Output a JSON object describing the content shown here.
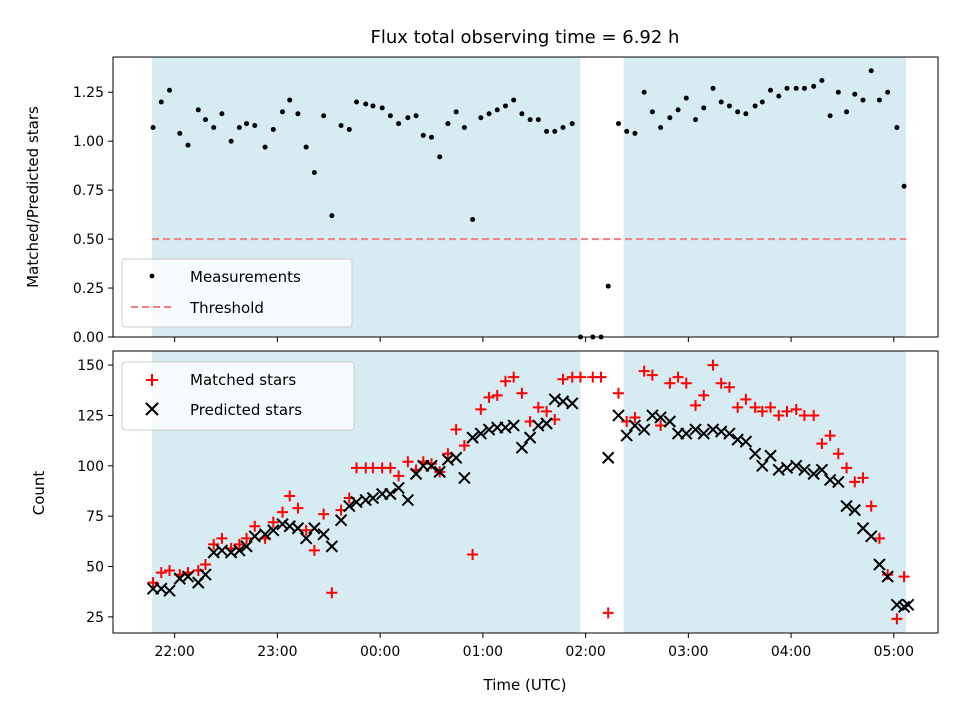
{
  "chart_data": [
    {
      "type": "scatter",
      "title": "Flux total observing time = 6.92 h",
      "ylabel": "Matched/Predicted stars",
      "xlabel": "",
      "ylim": [
        0,
        1.43
      ],
      "xlim": [
        21.4,
        29.43
      ],
      "x_ticks": [
        22,
        23,
        24,
        25,
        26,
        27,
        28,
        29
      ],
      "y_ticks": [
        0.0,
        0.25,
        0.5,
        0.75,
        1.0,
        1.25
      ],
      "y_tick_labels": [
        "0.00",
        "0.25",
        "0.50",
        "0.75",
        "1.00",
        "1.25"
      ],
      "threshold": 0.5,
      "shaded_regions": [
        [
          21.78,
          25.95
        ],
        [
          26.37,
          29.12
        ]
      ],
      "series": [
        {
          "name": "Measurements",
          "color": "#000000",
          "x": [
            21.79,
            21.87,
            21.95,
            22.05,
            22.13,
            22.23,
            22.3,
            22.38,
            22.46,
            22.55,
            22.63,
            22.7,
            22.78,
            22.88,
            22.96,
            23.05,
            23.12,
            23.2,
            23.28,
            23.36,
            23.45,
            23.53,
            23.62,
            23.7,
            23.77,
            23.86,
            23.93,
            24.02,
            24.1,
            24.18,
            24.27,
            24.35,
            24.42,
            24.5,
            24.58,
            24.66,
            24.74,
            24.82,
            24.9,
            24.98,
            25.06,
            25.14,
            25.22,
            25.3,
            25.38,
            25.46,
            25.54,
            25.62,
            25.7,
            25.78,
            25.87,
            25.95,
            26.07,
            26.15,
            26.22,
            26.32,
            26.4,
            26.48,
            26.57,
            26.65,
            26.73,
            26.82,
            26.9,
            26.98,
            27.07,
            27.15,
            27.24,
            27.32,
            27.4,
            27.48,
            27.56,
            27.65,
            27.72,
            27.8,
            27.88,
            27.96,
            28.05,
            28.13,
            28.22,
            28.3,
            28.38,
            28.46,
            28.54,
            28.62,
            28.7,
            28.78,
            28.86,
            28.94,
            29.03,
            29.1
          ],
          "y": [
            1.07,
            1.2,
            1.26,
            1.04,
            0.98,
            1.16,
            1.11,
            1.07,
            1.14,
            1.0,
            1.07,
            1.09,
            1.08,
            0.97,
            1.06,
            1.15,
            1.21,
            1.14,
            0.97,
            0.84,
            1.13,
            0.62,
            1.08,
            1.06,
            1.2,
            1.19,
            1.18,
            1.17,
            1.13,
            1.09,
            1.12,
            1.13,
            1.03,
            1.02,
            0.92,
            1.09,
            1.15,
            1.07,
            0.6,
            1.12,
            1.14,
            1.16,
            1.18,
            1.21,
            1.14,
            1.11,
            1.11,
            1.05,
            1.05,
            1.07,
            1.09,
            0.0,
            0.0,
            0.0,
            0.26,
            1.09,
            1.05,
            1.04,
            1.25,
            1.15,
            1.07,
            1.12,
            1.16,
            1.22,
            1.11,
            1.17,
            1.27,
            1.2,
            1.18,
            1.15,
            1.14,
            1.18,
            1.2,
            1.26,
            1.23,
            1.27,
            1.27,
            1.27,
            1.28,
            1.31,
            1.13,
            1.25,
            1.15,
            1.24,
            1.21,
            1.36,
            1.21,
            1.25,
            1.07,
            0.77
          ]
        },
        {
          "name": "Threshold",
          "color": "#f07f7f",
          "style": "dashed",
          "values": [
            0.5
          ]
        }
      ]
    },
    {
      "type": "scatter",
      "title": "",
      "ylabel": "Count",
      "xlabel": "Time (UTC)",
      "ylim": [
        17,
        157
      ],
      "xlim": [
        21.4,
        29.43
      ],
      "x_ticks": [
        22,
        23,
        24,
        25,
        26,
        27,
        28,
        29
      ],
      "x_tick_labels": [
        "22:00",
        "23:00",
        "00:00",
        "01:00",
        "02:00",
        "03:00",
        "04:00",
        "05:00"
      ],
      "y_ticks": [
        25,
        50,
        75,
        100,
        125,
        150
      ],
      "y_tick_labels": [
        "25",
        "50",
        "75",
        "100",
        "125",
        "150"
      ],
      "shaded_regions": [
        [
          21.78,
          25.95
        ],
        [
          26.37,
          29.12
        ]
      ],
      "series": [
        {
          "name": "Matched stars",
          "color": "#ff0000",
          "marker": "plus",
          "x": [
            21.79,
            21.87,
            21.95,
            22.05,
            22.13,
            22.23,
            22.3,
            22.38,
            22.46,
            22.55,
            22.63,
            22.7,
            22.78,
            22.88,
            22.96,
            23.05,
            23.12,
            23.2,
            23.28,
            23.36,
            23.45,
            23.53,
            23.62,
            23.7,
            23.77,
            23.86,
            23.93,
            24.02,
            24.1,
            24.18,
            24.27,
            24.35,
            24.42,
            24.5,
            24.58,
            24.66,
            24.74,
            24.82,
            24.9,
            24.98,
            25.06,
            25.14,
            25.22,
            25.3,
            25.38,
            25.46,
            25.54,
            25.62,
            25.7,
            25.78,
            25.87,
            25.95,
            26.07,
            26.15,
            26.22,
            26.32,
            26.4,
            26.48,
            26.57,
            26.65,
            26.73,
            26.82,
            26.9,
            26.98,
            27.07,
            27.15,
            27.24,
            27.32,
            27.4,
            27.48,
            27.56,
            27.65,
            27.72,
            27.8,
            27.88,
            27.96,
            28.05,
            28.13,
            28.22,
            28.3,
            28.38,
            28.46,
            28.54,
            28.62,
            28.7,
            28.78,
            28.86,
            28.94,
            29.03,
            29.1
          ],
          "y": [
            42,
            47,
            48,
            46,
            47,
            48,
            51,
            61,
            64,
            59,
            61,
            64,
            70,
            64,
            72,
            77,
            85,
            79,
            68,
            58,
            76,
            37,
            78,
            84,
            99,
            99,
            99,
            99,
            99,
            95,
            102,
            98,
            102,
            101,
            97,
            106,
            118,
            110,
            56,
            128,
            134,
            135,
            142,
            144,
            136,
            122,
            129,
            127,
            123,
            143,
            144,
            144,
            144,
            144,
            27,
            136,
            122,
            124,
            147,
            145,
            120,
            141,
            144,
            141,
            130,
            135,
            150,
            141,
            139,
            129,
            133,
            129,
            127,
            129,
            125,
            127,
            128,
            125,
            125,
            111,
            115,
            106,
            99,
            92,
            94,
            80,
            64,
            46,
            24,
            45
          ]
        },
        {
          "name": "Predicted stars",
          "color": "#000000",
          "marker": "cross",
          "x": [
            21.79,
            21.87,
            21.95,
            22.05,
            22.13,
            22.23,
            22.3,
            22.38,
            22.46,
            22.55,
            22.63,
            22.7,
            22.78,
            22.88,
            22.96,
            23.05,
            23.12,
            23.2,
            23.28,
            23.36,
            23.45,
            23.53,
            23.62,
            23.7,
            23.77,
            23.86,
            23.93,
            24.02,
            24.1,
            24.18,
            24.27,
            24.35,
            24.42,
            24.5,
            24.58,
            24.66,
            24.74,
            24.82,
            24.9,
            24.98,
            25.06,
            25.14,
            25.22,
            25.3,
            25.38,
            25.46,
            25.54,
            25.62,
            25.7,
            25.78,
            25.87,
            26.22,
            26.32,
            26.4,
            26.48,
            26.57,
            26.65,
            26.73,
            26.82,
            26.9,
            26.98,
            27.07,
            27.15,
            27.24,
            27.32,
            27.4,
            27.48,
            27.56,
            27.65,
            27.72,
            27.8,
            27.88,
            27.96,
            28.05,
            28.13,
            28.22,
            28.3,
            28.38,
            28.46,
            28.54,
            28.62,
            28.7,
            28.78,
            28.86,
            28.94,
            29.03,
            29.1,
            29.14
          ],
          "y": [
            39,
            39,
            38,
            44,
            45,
            42,
            46,
            57,
            58,
            57,
            58,
            60,
            65,
            66,
            68,
            71,
            70,
            69,
            64,
            69,
            66,
            60,
            73,
            80,
            82,
            83,
            84,
            86,
            86,
            89,
            83,
            96,
            100,
            100,
            97,
            103,
            104,
            94,
            114,
            116,
            118,
            119,
            119,
            120,
            109,
            114,
            120,
            121,
            133,
            132,
            131,
            104,
            125,
            115,
            120,
            118,
            125,
            124,
            122,
            116,
            116,
            118,
            116,
            118,
            117,
            116,
            113,
            112,
            106,
            100,
            105,
            98,
            99,
            100,
            98,
            96,
            98,
            93,
            92,
            80,
            78,
            69,
            65,
            51,
            45,
            31,
            30,
            31
          ]
        }
      ]
    }
  ]
}
